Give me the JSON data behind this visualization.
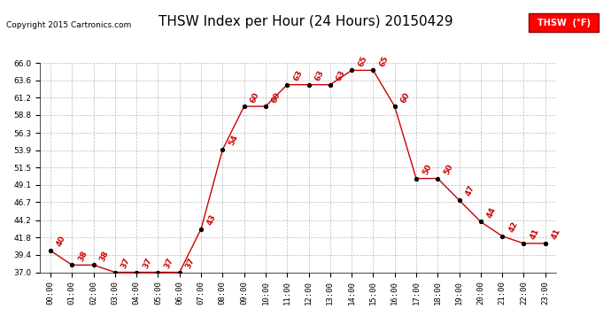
{
  "title": "THSW Index per Hour (24 Hours) 20150429",
  "copyright": "Copyright 2015 Cartronics.com",
  "legend_label": "THSW  (°F)",
  "hours": [
    0,
    1,
    2,
    3,
    4,
    5,
    6,
    7,
    8,
    9,
    10,
    11,
    12,
    13,
    14,
    15,
    16,
    17,
    18,
    19,
    20,
    21,
    22,
    23
  ],
  "values": [
    40,
    38,
    38,
    37,
    37,
    37,
    37,
    43,
    54,
    60,
    60,
    63,
    63,
    63,
    65,
    65,
    60,
    50,
    50,
    47,
    44,
    42,
    41,
    41
  ],
  "x_labels": [
    "00:00",
    "01:00",
    "02:00",
    "03:00",
    "04:00",
    "05:00",
    "06:00",
    "07:00",
    "08:00",
    "09:00",
    "10:00",
    "11:00",
    "12:00",
    "13:00",
    "14:00",
    "15:00",
    "16:00",
    "17:00",
    "18:00",
    "19:00",
    "20:00",
    "21:00",
    "22:00",
    "23:00"
  ],
  "ylim": [
    37.0,
    66.0
  ],
  "yticks": [
    37.0,
    39.4,
    41.8,
    44.2,
    46.7,
    49.1,
    51.5,
    53.9,
    56.3,
    58.8,
    61.2,
    63.6,
    66.0
  ],
  "line_color": "#cc0000",
  "marker_color": "#000000",
  "label_color": "#cc0000",
  "background_color": "#ffffff",
  "grid_color": "#aaaaaa",
  "title_fontsize": 11,
  "label_fontsize": 6.5,
  "tick_fontsize": 6.5
}
